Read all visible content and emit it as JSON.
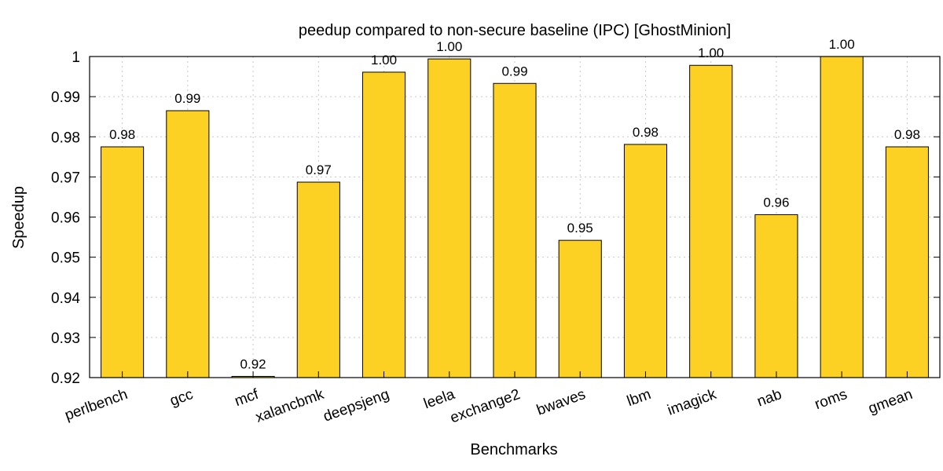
{
  "chart_data": {
    "type": "bar",
    "title": "peedup compared to non-secure baseline (IPC) [GhostMinion]",
    "xlabel": "Benchmarks",
    "ylabel": "Speedup",
    "ylim": [
      0.92,
      1.0
    ],
    "yticks": [
      0.92,
      0.93,
      0.94,
      0.95,
      0.96,
      0.97,
      0.98,
      0.99,
      1
    ],
    "ytick_labels": [
      "0.92",
      "0.93",
      "0.94",
      "0.95",
      "0.96",
      "0.97",
      "0.98",
      "0.99",
      "1"
    ],
    "grid": true,
    "legend": "none",
    "bar_color": "#fdd123",
    "categories": [
      "perlbench",
      "gcc",
      "mcf",
      "xalancbmk",
      "deepsjeng",
      "leela",
      "exchange2",
      "bwaves",
      "lbm",
      "imagick",
      "nab",
      "roms",
      "gmean"
    ],
    "values": [
      0.9775,
      0.9865,
      0.9203,
      0.9687,
      0.9961,
      0.9994,
      0.9933,
      0.9542,
      0.9781,
      0.9978,
      0.9606,
      1.0,
      0.9775
    ],
    "value_labels": [
      "0.98",
      "0.99",
      "0.92",
      "0.97",
      "1.00",
      "1.00",
      "0.99",
      "0.95",
      "0.98",
      "1.00",
      "0.96",
      "1.00",
      "0.98"
    ]
  }
}
